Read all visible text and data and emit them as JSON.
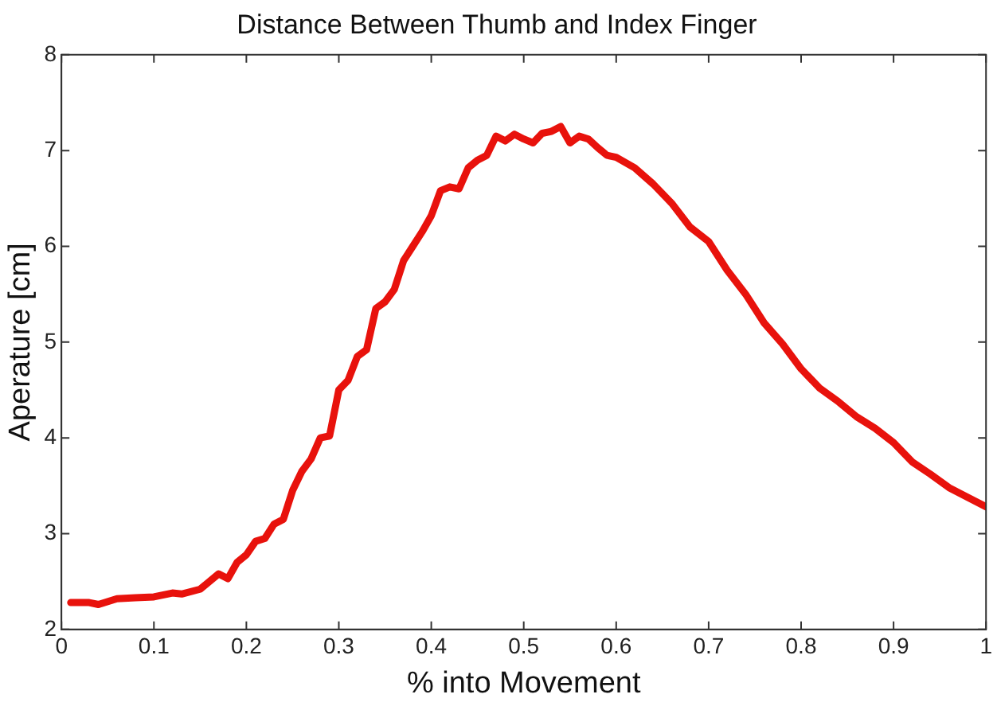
{
  "chart_data": {
    "type": "line",
    "title": "Distance Between Thumb and Index Finger",
    "xlabel": "% into Movement",
    "ylabel": "Aperature [cm]",
    "x": [
      0.01,
      0.03,
      0.04,
      0.06,
      0.08,
      0.1,
      0.12,
      0.13,
      0.15,
      0.17,
      0.18,
      0.19,
      0.2,
      0.21,
      0.22,
      0.23,
      0.24,
      0.25,
      0.26,
      0.27,
      0.28,
      0.29,
      0.3,
      0.31,
      0.32,
      0.33,
      0.34,
      0.35,
      0.36,
      0.37,
      0.38,
      0.39,
      0.4,
      0.41,
      0.42,
      0.43,
      0.44,
      0.45,
      0.46,
      0.47,
      0.48,
      0.49,
      0.5,
      0.51,
      0.52,
      0.53,
      0.54,
      0.55,
      0.56,
      0.57,
      0.58,
      0.59,
      0.6,
      0.62,
      0.64,
      0.66,
      0.68,
      0.7,
      0.72,
      0.74,
      0.76,
      0.78,
      0.8,
      0.82,
      0.84,
      0.86,
      0.88,
      0.9,
      0.92,
      0.94,
      0.96,
      0.98,
      1.0
    ],
    "series": [
      {
        "color": "#e8120c",
        "values": [
          2.28,
          2.28,
          2.26,
          2.32,
          2.33,
          2.34,
          2.38,
          2.37,
          2.42,
          2.58,
          2.53,
          2.7,
          2.78,
          2.92,
          2.95,
          3.1,
          3.15,
          3.45,
          3.65,
          3.78,
          4.0,
          4.02,
          4.5,
          4.6,
          4.85,
          4.92,
          5.35,
          5.42,
          5.55,
          5.85,
          6.0,
          6.15,
          6.32,
          6.58,
          6.62,
          6.6,
          6.82,
          6.9,
          6.95,
          7.15,
          7.1,
          7.17,
          7.12,
          7.08,
          7.18,
          7.2,
          7.25,
          7.08,
          7.15,
          7.12,
          7.03,
          6.95,
          6.93,
          6.82,
          6.65,
          6.45,
          6.2,
          6.05,
          5.75,
          5.5,
          5.2,
          4.98,
          4.72,
          4.52,
          4.38,
          4.22,
          4.1,
          3.95,
          3.75,
          3.62,
          3.48,
          3.38,
          3.28
        ]
      }
    ],
    "xlim": [
      0,
      1
    ],
    "xticks": [
      0,
      0.1,
      0.2,
      0.3,
      0.4,
      0.5,
      0.6,
      0.7,
      0.8,
      0.9,
      1
    ],
    "ylim": [
      2,
      8
    ],
    "yticks": [
      2,
      3,
      4,
      5,
      6,
      7,
      8
    ],
    "grid": false,
    "legend": false,
    "marker": "none",
    "line_style": "solid"
  }
}
